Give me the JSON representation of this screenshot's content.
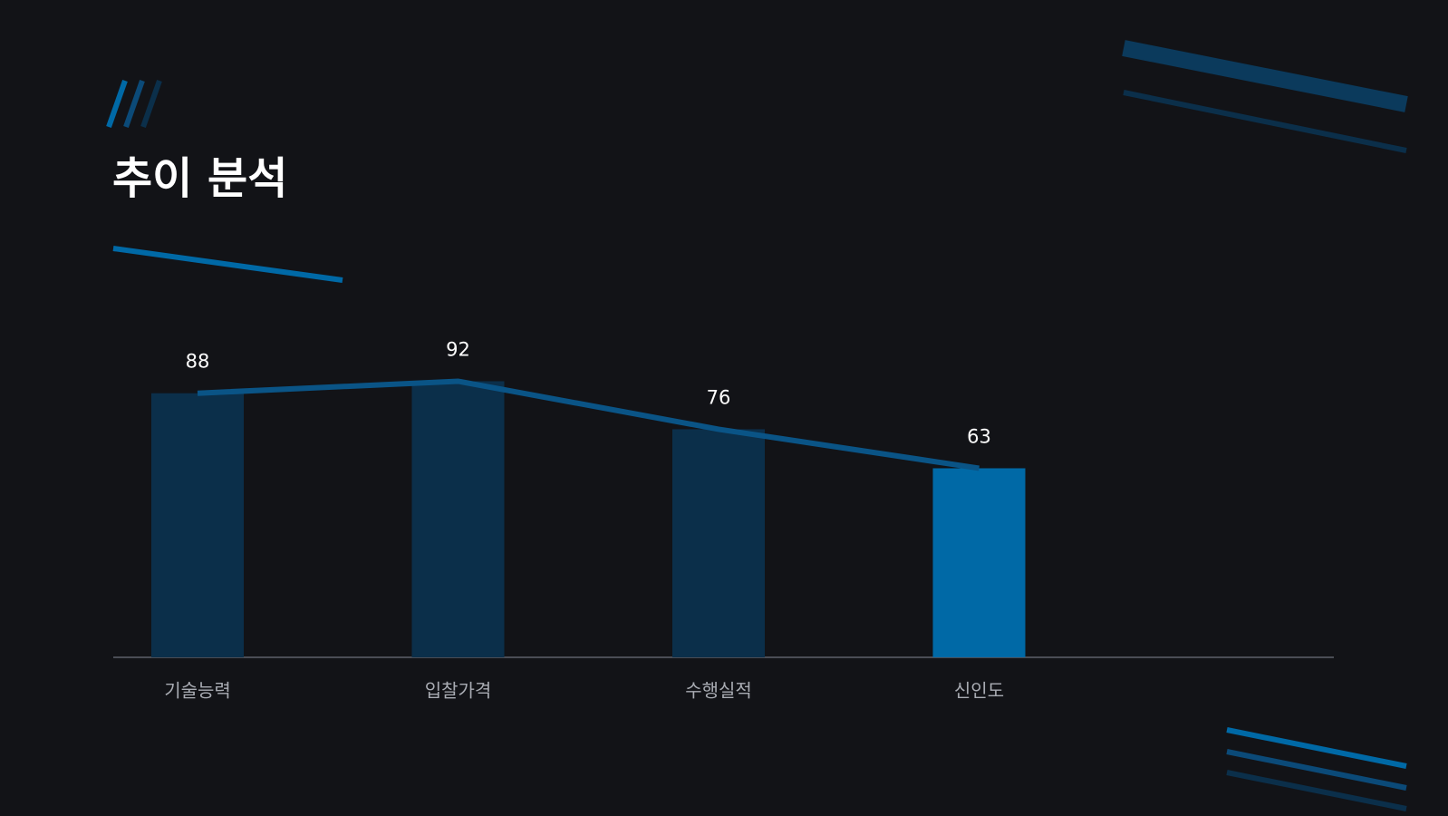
{
  "chart_data": {
    "type": "bar",
    "title": "추이 분석",
    "categories": [
      "기술능력",
      "입찰가격",
      "수행실적",
      "신인도"
    ],
    "values": [
      88,
      92,
      76,
      63
    ],
    "colors": [
      "#0b2f4a",
      "#0b2f4a",
      "#0b2f4a",
      "#0069a6"
    ],
    "line_color": "#0a5486",
    "ylim": [
      0,
      100
    ]
  }
}
